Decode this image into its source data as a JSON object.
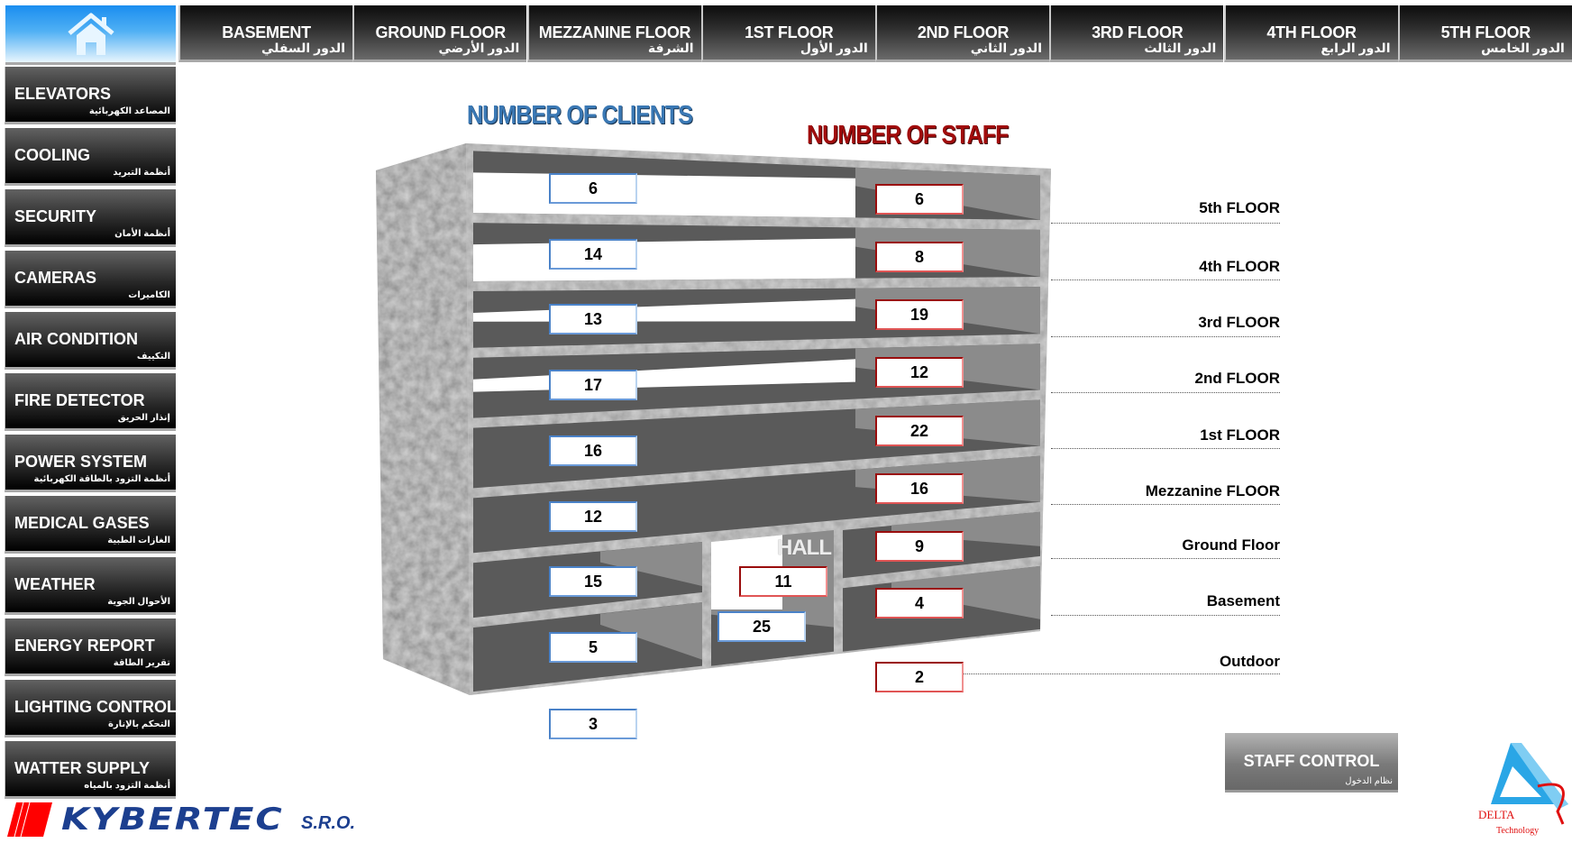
{
  "home": {
    "icon": "home-icon"
  },
  "top_tabs": [
    {
      "label": "BASEMENT",
      "arabic": "الدور السفلي"
    },
    {
      "label": "GROUND FLOOR",
      "arabic": "الدور الأرضي"
    },
    {
      "label": "MEZZANINE FLOOR",
      "arabic": "الشرفة"
    },
    {
      "label": "1ST FLOOR",
      "arabic": "الدور الأول"
    },
    {
      "label": "2ND FLOOR",
      "arabic": "الدور الثاني"
    },
    {
      "label": "3RD FLOOR",
      "arabic": "الدور الثالث"
    },
    {
      "label": "4TH FLOOR",
      "arabic": "الدور الرابع"
    },
    {
      "label": "5TH FLOOR",
      "arabic": "الدور الخامس"
    }
  ],
  "sidebar": [
    {
      "label": "ELEVATORS",
      "arabic": "المصاعد الكهربائية"
    },
    {
      "label": "COOLING",
      "arabic": "أنظمة التبريد"
    },
    {
      "label": "SECURITY",
      "arabic": "أنظمة الأمان"
    },
    {
      "label": "CAMERAS",
      "arabic": "الكاميرات"
    },
    {
      "label": "AIR CONDITION",
      "arabic": "التكييف"
    },
    {
      "label": "FIRE DETECTOR",
      "arabic": "إنذار الحريق"
    },
    {
      "label": "POWER SYSTEM",
      "arabic": "أنظمة التزود بالطاقة الكهربائية"
    },
    {
      "label": "MEDICAL GASES",
      "arabic": "الغازات الطبية"
    },
    {
      "label": "WEATHER",
      "arabic": "الأحوال الجوية"
    },
    {
      "label": "ENERGY REPORT",
      "arabic": "تقرير الطاقة"
    },
    {
      "label": "LIGHTING CONTROL",
      "arabic": "التحكم بالإنارة"
    },
    {
      "label": "WATTER SUPPLY",
      "arabic": "أنظمة التزود بالمياه"
    }
  ],
  "titles": {
    "clients": "NUMBER OF CLIENTS",
    "staff": "NUMBER OF STAFF"
  },
  "floors": [
    {
      "label": "5th FLOOR",
      "clients": "6",
      "staff": "6"
    },
    {
      "label": "4th FLOOR",
      "clients": "14",
      "staff": "8"
    },
    {
      "label": "3rd FLOOR",
      "clients": "13",
      "staff": "19"
    },
    {
      "label": "2nd FLOOR",
      "clients": "17",
      "staff": "12"
    },
    {
      "label": "1st FLOOR",
      "clients": "16",
      "staff": "22"
    },
    {
      "label": "Mezzanine FLOOR",
      "clients": "12",
      "staff": "16"
    },
    {
      "label": "Ground Floor",
      "clients": "15",
      "staff": "9"
    },
    {
      "label": "Basement",
      "clients": "5",
      "staff": "4"
    },
    {
      "label": "Outdoor",
      "clients": "3",
      "staff": "2"
    }
  ],
  "hall": {
    "label": "HALL",
    "staff": "11",
    "clients": "25"
  },
  "staff_control": {
    "label": "STAFF CONTROL",
    "arabic": "نظام الدخول"
  },
  "logos": {
    "kybertec": "KYBERTEC",
    "sro": "S.R.O.",
    "delta": "DELTA",
    "technology": "Technology"
  },
  "colors": {
    "clients": "#3a78b4",
    "staff": "#a10c0c",
    "home": "#1a8df0",
    "kybertec": "#1c3f8f"
  }
}
